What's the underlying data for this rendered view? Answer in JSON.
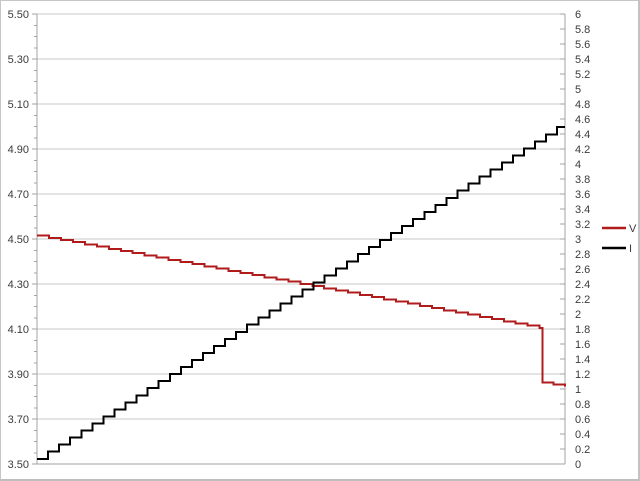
{
  "window": {
    "background": "#ffffff",
    "frame_border_color": "#c6c6c6"
  },
  "colors": {
    "gridline": "#c9c9c9",
    "axis_line": "#a3a3a3",
    "tick": "#a3a3a3",
    "label_text": "#3b3b3b",
    "series_v": "#b01c1c",
    "series_i": "#000000"
  },
  "legend": {
    "position": "right",
    "items": [
      {
        "label": "V",
        "color": "#b01c1c"
      },
      {
        "label": "I",
        "color": "#000000"
      }
    ]
  },
  "chart_data": {
    "type": "line",
    "title": "",
    "xlabel": "",
    "x_tick_labels": [],
    "grid": "horizontal-major-only",
    "legend_position": "right-middle",
    "left_axis": {
      "label": "",
      "min": 3.5,
      "max": 5.5,
      "major_step": 0.2,
      "minor_step": 0.05,
      "tick_labels": [
        "5.50",
        "5.30",
        "5.10",
        "4.90",
        "4.70",
        "4.50",
        "4.30",
        "4.10",
        "3.90",
        "3.70",
        "3.50"
      ]
    },
    "right_axis": {
      "label": "",
      "min": 0,
      "max": 6,
      "tick_step": 0.2,
      "tick_labels": [
        "6",
        "5.8",
        "5.6",
        "5.4",
        "5.2",
        "5",
        "4.8",
        "4.6",
        "4.4",
        "4.2",
        "4",
        "3.8",
        "3.6",
        "3.4",
        "3.2",
        "3",
        "2.8",
        "2.6",
        "2.4",
        "2.2",
        "2",
        "1.8",
        "1.6",
        "1.4",
        "1.2",
        "1",
        "0.8",
        "0.6",
        "0.4",
        "0.2",
        "0"
      ]
    },
    "series": [
      {
        "name": "V",
        "axis": "left",
        "color": "#b01c1c",
        "style": "staircase",
        "description": "Voltage declines in small steps from ~4.52 to ~4.10, then drops sharply to ~3.86 and flattens near ~3.85",
        "segments": [
          {
            "x0": 0.0,
            "x1": 0.952,
            "v0": 4.515,
            "v1": 4.105,
            "steps": 42
          },
          {
            "x0": 0.952,
            "x1": 0.957,
            "v0": 4.105,
            "v1": 3.862,
            "steps": 1
          },
          {
            "x0": 0.957,
            "x1": 1.0,
            "v0": 3.862,
            "v1": 3.845,
            "steps": 2
          }
        ]
      },
      {
        "name": "I",
        "axis": "right",
        "color": "#000000",
        "style": "staircase",
        "description": "Current rises in a staircase from ~0.1 to ~4.5, flat at the very end",
        "segments": [
          {
            "x0": 0.0,
            "x1": 0.985,
            "v0": 0.07,
            "v1": 4.49,
            "steps": 47
          },
          {
            "x0": 0.985,
            "x1": 1.0,
            "v0": 4.49,
            "v1": 4.49,
            "steps": 1
          }
        ]
      }
    ]
  }
}
